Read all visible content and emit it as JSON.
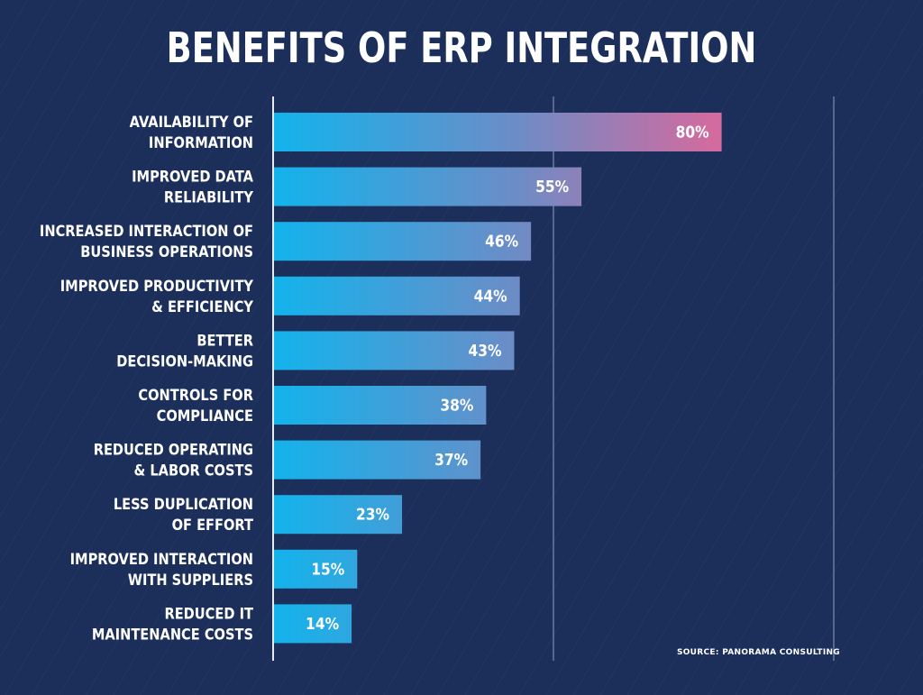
{
  "chart_data": {
    "type": "bar",
    "orientation": "horizontal",
    "title": "BENEFITS OF ERP INTEGRATION",
    "categories": [
      [
        "AVAILABILITY OF",
        "INFORMATION"
      ],
      [
        "IMPROVED DATA",
        "RELIABILITY"
      ],
      [
        "INCREASED INTERACTION OF",
        "BUSINESS OPERATIONS"
      ],
      [
        "IMPROVED PRODUCTIVITY",
        "& EFFICIENCY"
      ],
      [
        "BETTER",
        "DECISION-MAKING"
      ],
      [
        "CONTROLS FOR",
        "COMPLIANCE"
      ],
      [
        "REDUCED OPERATING",
        "& LABOR COSTS"
      ],
      [
        "LESS DUPLICATION",
        "OF EFFORT"
      ],
      [
        "IMPROVED INTERACTION",
        "WITH SUPPLIERS"
      ],
      [
        "REDUCED IT",
        "MAINTENANCE COSTS"
      ]
    ],
    "values": [
      80,
      55,
      46,
      44,
      43,
      38,
      37,
      23,
      15,
      14
    ],
    "value_labels": [
      "80%",
      "55%",
      "46%",
      "44%",
      "43%",
      "38%",
      "37%",
      "23%",
      "15%",
      "14%"
    ],
    "xlim": [
      0,
      100
    ],
    "gridlines_at": [
      0,
      50,
      100
    ],
    "xlabel": "",
    "ylabel": "",
    "source": "SOURCE:  PANORAMA CONSULTING",
    "colors": {
      "background": "#1b2f5a",
      "bar_start": "#12b3ec",
      "bar_mid": "#6d8cc6",
      "bar_end": "#d56a9e",
      "gridline": "#8d9bb8",
      "text": "#ffffff"
    }
  }
}
